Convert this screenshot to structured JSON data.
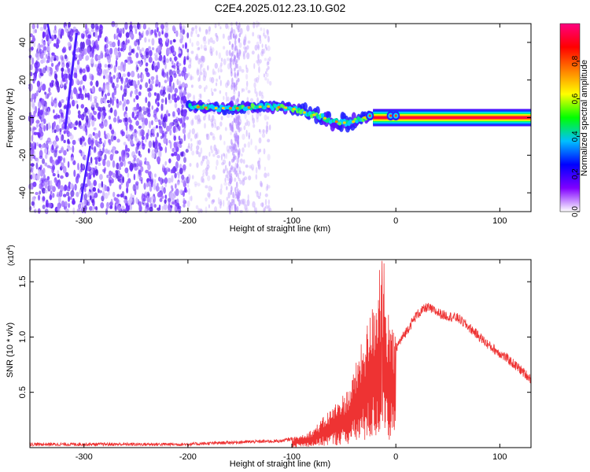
{
  "chart_data": [
    {
      "type": "heatmap",
      "title": "C2E4.2025.012.23.10.G02",
      "xlabel": "Height of straight line (km)",
      "ylabel": "Frequency (Hz)",
      "xlim": [
        -352,
        130
      ],
      "ylim": [
        -50,
        50
      ],
      "x_ticks": [
        -300,
        -200,
        -100,
        0,
        100
      ],
      "y_ticks": [
        -40,
        -20,
        0,
        20,
        40
      ],
      "colorbar": {
        "label": "Normalized spectral amplitude",
        "range": [
          0,
          1
        ],
        "ticks": [
          "0.0",
          "0.2",
          "0.4",
          "0.6",
          "0.8"
        ],
        "colors": [
          "#ffffff",
          "#8000ff",
          "#0000ff",
          "#00c0ff",
          "#00ff00",
          "#ffff00",
          "#ff8000",
          "#ff0000",
          "#ff0080"
        ]
      },
      "features": {
        "noise_region_x": [
          -352,
          -200
        ],
        "sparse_noise_region_x": [
          -200,
          -120
        ],
        "signal_band_center_hz": [
          [
            -200,
            6
          ],
          [
            -175,
            5
          ],
          [
            -150,
            5
          ],
          [
            -125,
            6
          ],
          [
            -100,
            5
          ],
          [
            -90,
            3
          ],
          [
            -75,
            1
          ],
          [
            -60,
            -2
          ],
          [
            -45,
            -3
          ],
          [
            -30,
            0
          ],
          [
            -20,
            1
          ],
          [
            0,
            1
          ],
          [
            130,
            0
          ]
        ],
        "steady_tone_x": [
          -30,
          130
        ],
        "steady_tone_hz": 0
      }
    },
    {
      "type": "line",
      "title": "",
      "xlabel": "Height of straight line (km)",
      "ylabel": "SNR (10 * v/v)",
      "y_scale_note": "(x10",
      "y_scale_exp": "4",
      "xlim": [
        -352,
        130
      ],
      "ylim": [
        0,
        1.7
      ],
      "x_ticks": [
        -300,
        -200,
        -100,
        0,
        100
      ],
      "y_ticks": [
        "0.5",
        "1.0",
        "1.5"
      ],
      "series": [
        {
          "color": "#ee3333",
          "envelope_points": [
            [
              -352,
              0.03
            ],
            [
              -250,
              0.03
            ],
            [
              -200,
              0.03
            ],
            [
              -150,
              0.05
            ],
            [
              -110,
              0.06
            ],
            [
              -100,
              0.08
            ],
            [
              -80,
              0.15
            ],
            [
              -60,
              0.35
            ],
            [
              -45,
              0.5
            ],
            [
              -35,
              0.8
            ],
            [
              -25,
              1.1
            ],
            [
              -15,
              1.4
            ],
            [
              -10,
              1.2
            ],
            [
              0,
              0.9
            ],
            [
              10,
              1.05
            ],
            [
              20,
              1.2
            ],
            [
              30,
              1.27
            ],
            [
              45,
              1.2
            ],
            [
              60,
              1.17
            ],
            [
              75,
              1.05
            ],
            [
              90,
              0.92
            ],
            [
              105,
              0.82
            ],
            [
              118,
              0.72
            ],
            [
              130,
              0.62
            ]
          ]
        }
      ]
    }
  ]
}
